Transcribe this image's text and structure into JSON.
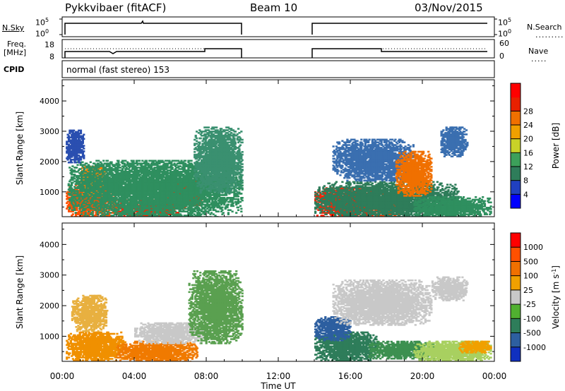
{
  "header": {
    "station": "Pykkvibaer (fitACF)",
    "beam": "Beam 10",
    "date": "03/Nov/2015"
  },
  "strip_labels": {
    "nsky": "N.Sky",
    "nsky_top": "10^5",
    "nsky_bottom": "10^0",
    "nsearch": "N.Search",
    "nsearch_top": "10^5",
    "nsearch_bottom": "10^0",
    "freq": "Freq.",
    "freq_unit": "[MHz]",
    "freq_top": "18",
    "freq_bottom": "8",
    "nave": "Nave",
    "nave_top": "60",
    "nave_bottom": "0",
    "cpid": "CPID",
    "cpid_value": "normal (fast stereo) 153"
  },
  "chart_data": [
    {
      "type": "heatmap",
      "title": "",
      "xlabel": "Time UT",
      "ylabel": "Slant Range [km]",
      "ylim": [
        180,
        4700
      ],
      "xlim": [
        0,
        24
      ],
      "x_ticks": [
        "00:00",
        "04:00",
        "08:00",
        "12:00",
        "16:00",
        "20:00",
        "00:00"
      ],
      "y_ticks": [
        "1000",
        "2000",
        "3000",
        "4000"
      ],
      "colorbar_label": "Power [dB]",
      "colorbar_ticks": [
        "4",
        "8",
        "12",
        "16",
        "20",
        "24",
        "28"
      ],
      "colorbar_colors": [
        "#0000ff",
        "#2040c0",
        "#2e7d5a",
        "#3ca05a",
        "#c8d228",
        "#f0a000",
        "#f07000",
        "#e82000",
        "#ff0000"
      ],
      "data_gaps": [
        [
          10.0,
          14.0
        ]
      ],
      "blobs": [
        {
          "t0": 0.2,
          "t1": 3.0,
          "r0": 200,
          "r1": 1300,
          "color": "#ff5000"
        },
        {
          "t0": 3.0,
          "t1": 6.5,
          "r0": 200,
          "r1": 800,
          "color": "#ff2000"
        },
        {
          "t0": 5.5,
          "t1": 7.8,
          "r0": 500,
          "r1": 1500,
          "color": "#e83000"
        },
        {
          "t0": 1.0,
          "t1": 2.5,
          "r0": 900,
          "r1": 1900,
          "color": "#ff8000"
        },
        {
          "t0": 0.3,
          "t1": 10.0,
          "r0": 200,
          "r1": 2100,
          "color": "#2f8f5f"
        },
        {
          "t0": 7.3,
          "t1": 10.0,
          "r0": 1000,
          "r1": 3200,
          "color": "#3a9070"
        },
        {
          "t0": 0.2,
          "t1": 1.2,
          "r0": 2000,
          "r1": 3100,
          "color": "#2a4fb0"
        },
        {
          "t0": 14.0,
          "t1": 17.5,
          "r0": 200,
          "r1": 1200,
          "color": "#ff2000"
        },
        {
          "t0": 17.0,
          "t1": 19.0,
          "r0": 200,
          "r1": 1000,
          "color": "#ff3a00"
        },
        {
          "t0": 14.0,
          "t1": 22.0,
          "r0": 200,
          "r1": 1400,
          "color": "#2e7d5a"
        },
        {
          "t0": 15.0,
          "t1": 19.5,
          "r0": 1400,
          "r1": 2800,
          "color": "#3a6fb0"
        },
        {
          "t0": 18.5,
          "t1": 20.5,
          "r0": 900,
          "r1": 2400,
          "color": "#f07000"
        },
        {
          "t0": 19.5,
          "t1": 23.8,
          "r0": 200,
          "r1": 900,
          "color": "#2f8f5f"
        },
        {
          "t0": 21.0,
          "t1": 22.5,
          "r0": 2200,
          "r1": 3200,
          "color": "#3a6fb0"
        }
      ]
    },
    {
      "type": "heatmap",
      "title": "",
      "xlabel": "Time UT",
      "ylabel": "Slant Range [km]",
      "ylim": [
        180,
        4700
      ],
      "xlim": [
        0,
        24
      ],
      "x_ticks": [
        "00:00",
        "04:00",
        "08:00",
        "12:00",
        "16:00",
        "20:00",
        "00:00"
      ],
      "y_ticks": [
        "1000",
        "2000",
        "3000",
        "4000"
      ],
      "colorbar_label": "Velocity [m s^-1]",
      "colorbar_ticks": [
        "1000",
        "500",
        "100",
        "25",
        "-25",
        "-100",
        "-500",
        "-1000"
      ],
      "colorbar_colors": [
        "#1030c0",
        "#2d5fa0",
        "#2e7d5a",
        "#50b030",
        "#c8c8c8",
        "#f0a000",
        "#f07000",
        "#ff5000",
        "#ff0000"
      ],
      "data_gaps": [
        [
          10.0,
          14.0
        ]
      ],
      "blobs": [
        {
          "t0": 0.2,
          "t1": 3.5,
          "r0": 200,
          "r1": 1200,
          "color": "#f09000"
        },
        {
          "t0": 3.0,
          "t1": 7.5,
          "r0": 200,
          "r1": 900,
          "color": "#f07a00"
        },
        {
          "t0": 4.0,
          "t1": 8.0,
          "r0": 800,
          "r1": 1500,
          "color": "#c8c8c8"
        },
        {
          "t0": 0.5,
          "t1": 2.5,
          "r0": 1200,
          "r1": 2400,
          "color": "#e8b040"
        },
        {
          "t0": 7.0,
          "t1": 10.0,
          "r0": 800,
          "r1": 3200,
          "color": "#5aa050"
        },
        {
          "t0": 14.0,
          "t1": 17.5,
          "r0": 200,
          "r1": 1200,
          "color": "#2e7d5a"
        },
        {
          "t0": 14.0,
          "t1": 16.0,
          "r0": 900,
          "r1": 1700,
          "color": "#2d5fa0"
        },
        {
          "t0": 15.0,
          "t1": 20.5,
          "r0": 1400,
          "r1": 2900,
          "color": "#c8c8c8"
        },
        {
          "t0": 17.0,
          "t1": 21.0,
          "r0": 300,
          "r1": 900,
          "color": "#3c9050"
        },
        {
          "t0": 19.5,
          "t1": 23.8,
          "r0": 200,
          "r1": 900,
          "color": "#a8d060"
        },
        {
          "t0": 22.0,
          "t1": 23.8,
          "r0": 500,
          "r1": 900,
          "color": "#f0a000"
        },
        {
          "t0": 20.5,
          "t1": 22.5,
          "r0": 2200,
          "r1": 3000,
          "color": "#c8c8c8"
        }
      ]
    }
  ]
}
